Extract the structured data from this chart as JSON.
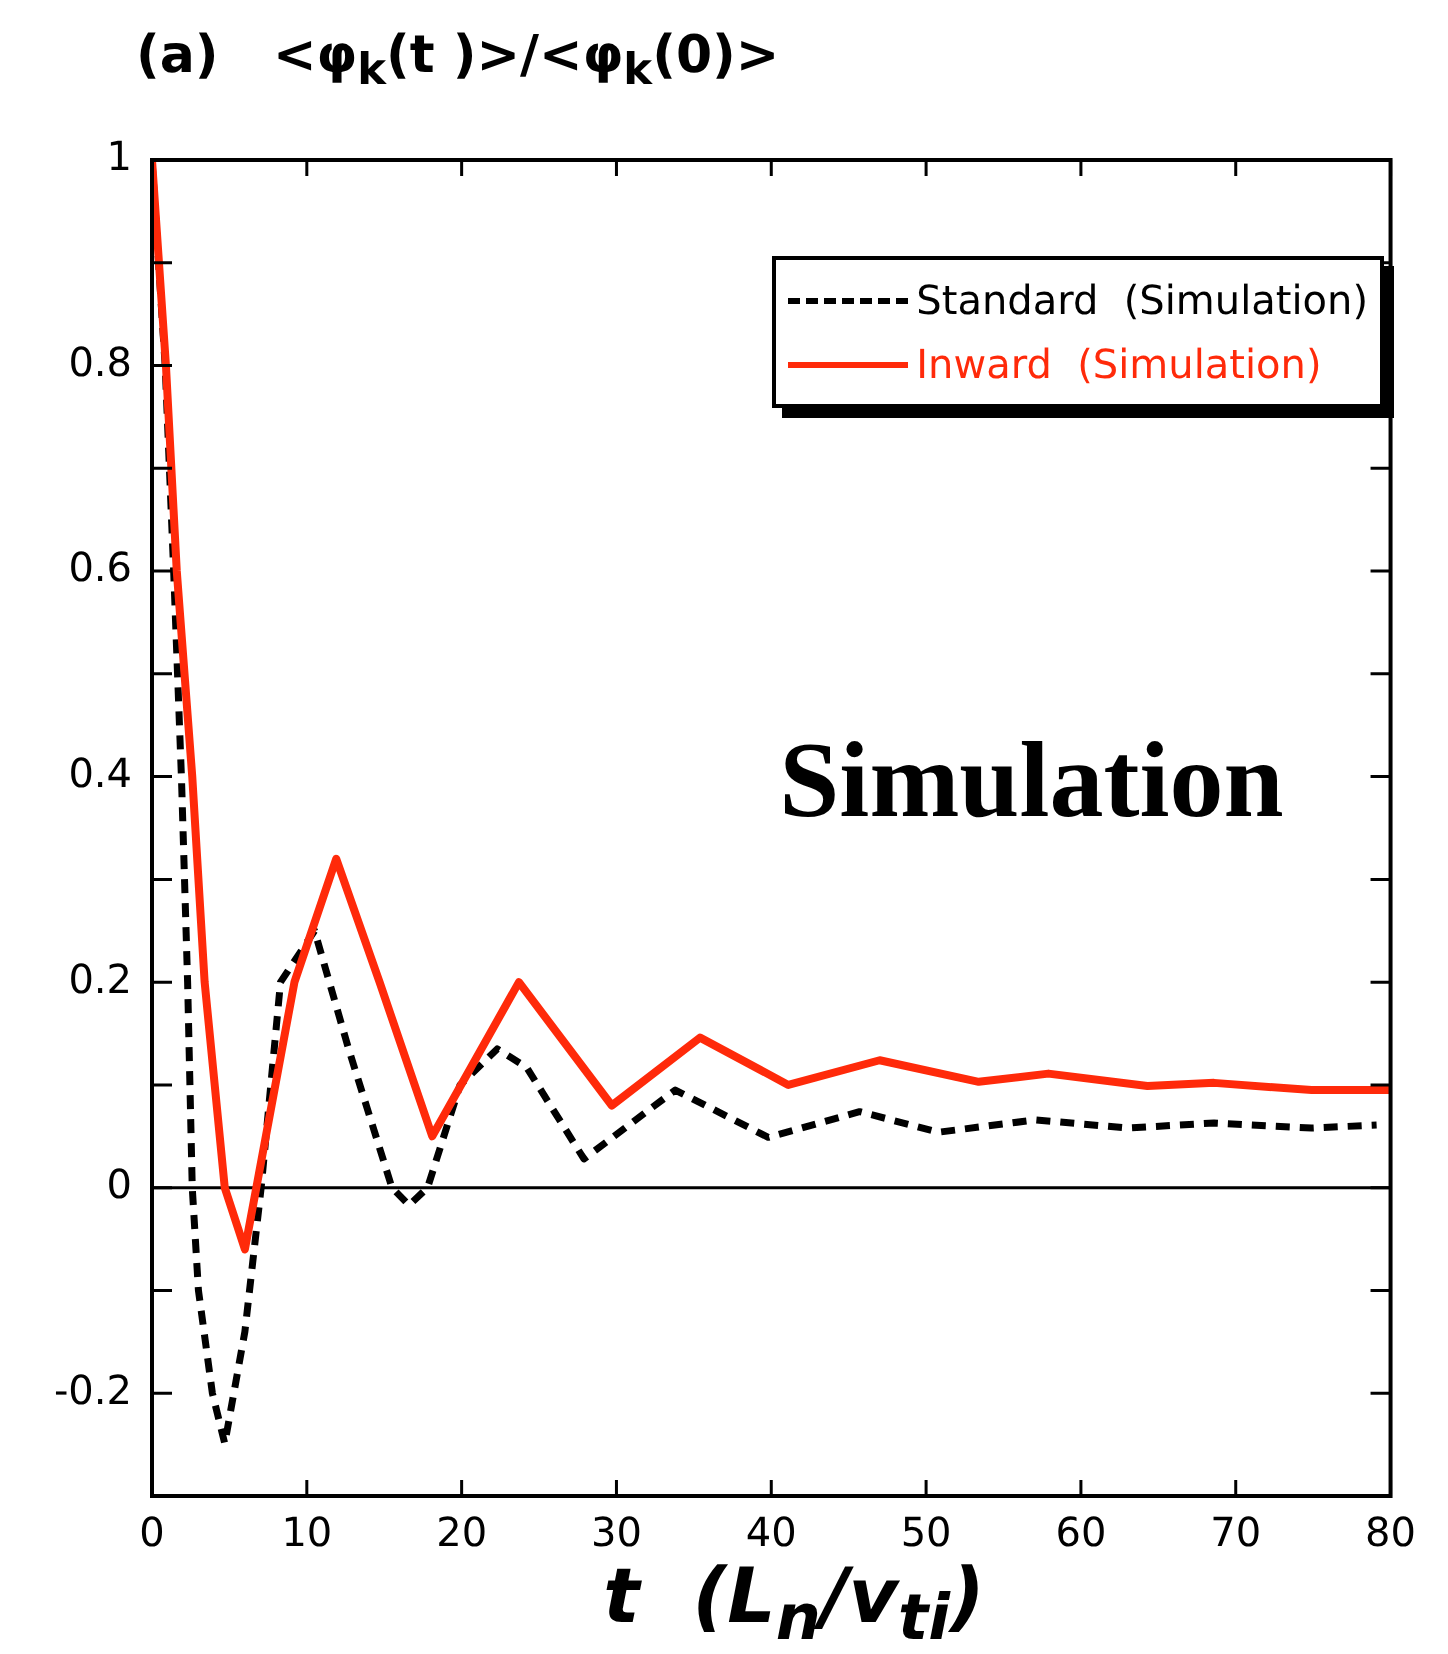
{
  "chart_data": {
    "type": "line",
    "title": "(a)   <φ$_{k}$(t )>/<φ$_{k}$(0)>",
    "xlabel": "t  (L$_{n}$/v$_{ti}$)",
    "annotations": [
      "Simulation"
    ],
    "legend": "top right",
    "grid": false,
    "marker": "none",
    "xlim": [
      0,
      80
    ],
    "xticks": [
      0,
      10,
      20,
      30,
      40,
      50,
      60,
      70,
      80
    ],
    "ylim": [
      -0.3,
      1
    ],
    "yticks": [
      -0.2,
      {
        "value": -0.1,
        "label": null
      },
      0,
      {
        "value": 0.1,
        "label": null
      },
      0.2,
      {
        "value": 0.3,
        "label": null
      },
      0.4,
      {
        "value": 0.5,
        "label": null
      },
      0.6,
      {
        "value": 0.7,
        "label": null
      },
      0.8,
      {
        "value": 0.9,
        "label": null
      },
      1
    ],
    "ref_lines": [
      {
        "axis": "y",
        "value": 0,
        "color": "#000000"
      }
    ],
    "series": [
      {
        "name": "Standard  (Simulation)",
        "color": "#000000",
        "line_style": "dashed",
        "x": [
          0,
          0.85,
          1.4,
          1.9,
          2.3,
          2.6,
          3.0,
          3.9,
          4.7,
          6.0,
          7.05,
          8.3,
          10.5,
          12.7,
          15.5,
          16.6,
          17.8,
          19.9,
          22.3,
          24.2,
          27.9,
          33.8,
          39.8,
          45.7,
          50.8,
          57.1,
          63,
          68.6,
          74.9,
          79.1
        ],
        "values": [
          1,
          0.8,
          0.6,
          0.4,
          0.2,
          0,
          -0.1,
          -0.2,
          -0.249,
          -0.14,
          0,
          0.2,
          0.25,
          0.135,
          0,
          -0.017,
          0,
          0.1,
          0.135,
          0.117,
          0.028,
          0.095,
          0.049,
          0.074,
          0.054,
          0.066,
          0.058,
          0.063,
          0.058,
          0.061
        ]
      },
      {
        "name": "Inward  (Simulation)",
        "color": "#ff2a0a",
        "line_style": "solid",
        "x": [
          0,
          0.9,
          1.6,
          2.6,
          3.4,
          4.7,
          6.0,
          9.2,
          11.9,
          14.7,
          18.1,
          23.7,
          29.7,
          35.4,
          41.1,
          47,
          53.4,
          57.9,
          64.3,
          68.6,
          74.9,
          80
        ],
        "values": [
          1,
          0.8,
          0.6,
          0.4,
          0.2,
          0,
          -0.06,
          0.2,
          0.32,
          0.2,
          0.05,
          0.2,
          0.08,
          0.146,
          0.1,
          0.124,
          0.103,
          0.111,
          0.099,
          0.102,
          0.095,
          0.095
        ]
      }
    ]
  }
}
